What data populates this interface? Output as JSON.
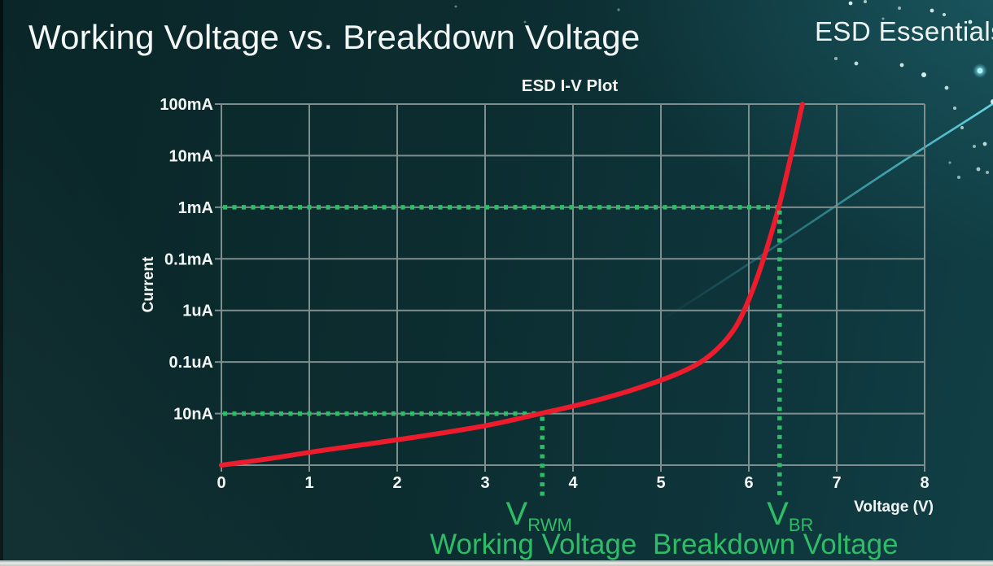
{
  "slide": {
    "title": "Working Voltage vs. Breakdown Voltage",
    "brand": "ESD Essentials"
  },
  "chart_data": {
    "type": "line",
    "title": "ESD I-V Plot",
    "xlabel": "Voltage (V)",
    "ylabel": "Current",
    "x_scale": "linear",
    "y_scale": "log",
    "xlim": [
      0,
      8
    ],
    "x_ticks": [
      "0",
      "1",
      "2",
      "3",
      "4",
      "5",
      "6",
      "7",
      "8"
    ],
    "y_ticks_top_to_bottom": [
      "100mA",
      "10mA",
      "1mA",
      "0.1mA",
      "1uA",
      "0.1uA",
      "10nA"
    ],
    "grid": true,
    "grid_color": "#7e8e8e",
    "series": [
      {
        "name": "esd-device-iv-curve",
        "color": "#ec1c2d",
        "points_volts_vs_gridrow": [
          [
            0,
            0
          ],
          [
            0.5,
            0.11
          ],
          [
            1,
            0.25
          ],
          [
            1.5,
            0.37
          ],
          [
            2,
            0.49
          ],
          [
            2.5,
            0.62
          ],
          [
            3,
            0.76
          ],
          [
            3.3,
            0.87
          ],
          [
            3.65,
            1.01
          ],
          [
            4,
            1.14
          ],
          [
            4.5,
            1.36
          ],
          [
            5,
            1.64
          ],
          [
            5.3,
            1.85
          ],
          [
            5.5,
            2.04
          ],
          [
            5.7,
            2.34
          ],
          [
            5.85,
            2.66
          ],
          [
            5.95,
            3.0
          ],
          [
            6.05,
            3.42
          ],
          [
            6.15,
            3.9
          ],
          [
            6.25,
            4.45
          ],
          [
            6.35,
            5.05
          ],
          [
            6.44,
            5.7
          ],
          [
            6.52,
            6.3
          ],
          [
            6.58,
            6.78
          ],
          [
            6.61,
            7.0
          ]
        ]
      }
    ],
    "annotation_color": "#2ebd66",
    "annotations": [
      {
        "id": "vrwm",
        "symbol": "V",
        "subscript": "RWM",
        "caption": "Working Voltage",
        "x_volts": 3.65,
        "marker_current": "10nA",
        "marker_row": 1
      },
      {
        "id": "vbr",
        "symbol": "V",
        "subscript": "BR",
        "caption": "Breakdown Voltage",
        "x_volts": 6.35,
        "marker_current": "1mA",
        "marker_row": 5
      }
    ]
  }
}
